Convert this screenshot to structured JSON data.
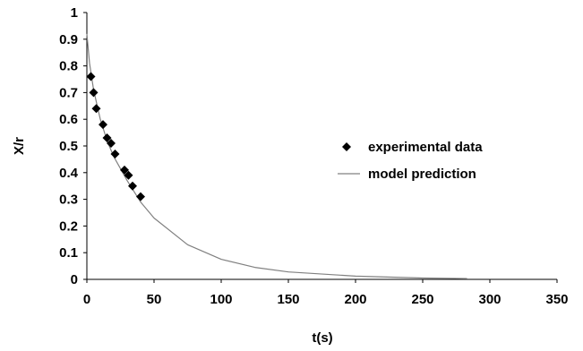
{
  "chart_data": {
    "type": "scatter",
    "title": "",
    "xlabel": "t(s)",
    "ylabel": "X/r",
    "xlim": [
      0,
      350
    ],
    "ylim": [
      0,
      1
    ],
    "x_ticks": [
      0,
      50,
      100,
      150,
      200,
      250,
      300,
      350
    ],
    "y_ticks": [
      0,
      0.1,
      0.2,
      0.3,
      0.4,
      0.5,
      0.6,
      0.7,
      0.8,
      0.9,
      1
    ],
    "grid": false,
    "legend_position": "right",
    "series": [
      {
        "name": "experimental data",
        "kind": "scatter",
        "marker": "diamond",
        "color": "#000000",
        "points": [
          {
            "x": 3,
            "y": 0.76
          },
          {
            "x": 5,
            "y": 0.7
          },
          {
            "x": 7,
            "y": 0.64
          },
          {
            "x": 12,
            "y": 0.58
          },
          {
            "x": 15,
            "y": 0.53
          },
          {
            "x": 18,
            "y": 0.51
          },
          {
            "x": 21,
            "y": 0.47
          },
          {
            "x": 28,
            "y": 0.41
          },
          {
            "x": 31,
            "y": 0.39
          },
          {
            "x": 34,
            "y": 0.35
          },
          {
            "x": 40,
            "y": 0.31
          }
        ]
      },
      {
        "name": "model prediction",
        "kind": "line",
        "color": "#808080",
        "points": [
          {
            "x": 0,
            "y": 0.92
          },
          {
            "x": 2,
            "y": 0.81
          },
          {
            "x": 5,
            "y": 0.71
          },
          {
            "x": 10,
            "y": 0.6
          },
          {
            "x": 15,
            "y": 0.52
          },
          {
            "x": 20,
            "y": 0.46
          },
          {
            "x": 30,
            "y": 0.37
          },
          {
            "x": 40,
            "y": 0.29
          },
          {
            "x": 50,
            "y": 0.23
          },
          {
            "x": 75,
            "y": 0.13
          },
          {
            "x": 100,
            "y": 0.075
          },
          {
            "x": 125,
            "y": 0.045
          },
          {
            "x": 150,
            "y": 0.028
          },
          {
            "x": 200,
            "y": 0.012
          },
          {
            "x": 250,
            "y": 0.005
          },
          {
            "x": 283,
            "y": 0.003
          }
        ]
      }
    ]
  }
}
